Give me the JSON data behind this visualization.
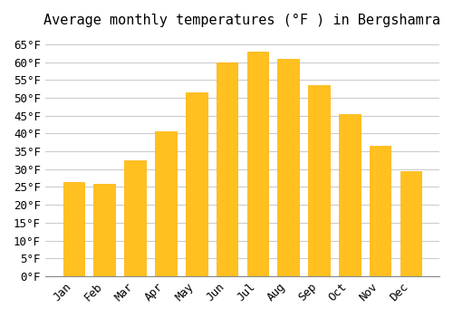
{
  "title": "Average monthly temperatures (°F ) in Bergshamra",
  "months": [
    "Jan",
    "Feb",
    "Mar",
    "Apr",
    "May",
    "Jun",
    "Jul",
    "Aug",
    "Sep",
    "Oct",
    "Nov",
    "Dec"
  ],
  "values": [
    26.5,
    26.0,
    32.5,
    40.5,
    51.5,
    60.0,
    63.0,
    61.0,
    53.5,
    45.5,
    36.5,
    29.5
  ],
  "bar_color": "#FFC020",
  "bar_edge_color": "#FFB000",
  "background_color": "#FFFFFF",
  "grid_color": "#CCCCCC",
  "ylim": [
    0,
    67
  ],
  "yticks": [
    0,
    5,
    10,
    15,
    20,
    25,
    30,
    35,
    40,
    45,
    50,
    55,
    60,
    65
  ],
  "title_fontsize": 11,
  "tick_fontsize": 9,
  "tick_font": "monospace"
}
